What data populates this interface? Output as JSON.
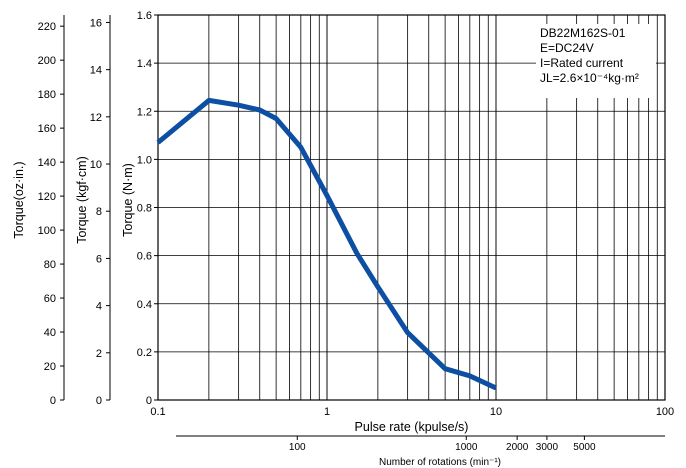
{
  "chart_data": {
    "type": "line",
    "x_scale": "log",
    "xlim": [
      0.1,
      100
    ],
    "ylim": [
      0,
      1.6
    ],
    "xlabel": "Pulse rate  (kpulse/s)",
    "ylabel": "Torque (N·m)",
    "x_ticks": [
      "0.1",
      "1",
      "10",
      "100"
    ],
    "y_ticks": [
      "0",
      "0.2",
      "0.4",
      "0.6",
      "0.8",
      "1.0",
      "1.2",
      "1.4",
      "1.6"
    ],
    "grid": true,
    "series": [
      {
        "color": "#0d4fa3",
        "points": [
          [
            0.1,
            1.07
          ],
          [
            0.2,
            1.245
          ],
          [
            0.3,
            1.225
          ],
          [
            0.4,
            1.205
          ],
          [
            0.5,
            1.17
          ],
          [
            0.7,
            1.05
          ],
          [
            1.0,
            0.85
          ],
          [
            1.5,
            0.61
          ],
          [
            2.0,
            0.47
          ],
          [
            3.0,
            0.28
          ],
          [
            5.0,
            0.13
          ],
          [
            7.0,
            0.1
          ],
          [
            10.0,
            0.05
          ]
        ]
      }
    ],
    "annotation": [
      "DB22M162S-01",
      "E=DC24V",
      "I=Rated current",
      "JL=2.6×10⁻⁴kg·m²"
    ],
    "secondary_axes": [
      {
        "label": "Torque (kgf·cm)",
        "ticks": [
          "0",
          "2",
          "4",
          "6",
          "8",
          "10",
          "12",
          "14",
          "16"
        ],
        "values": [
          0,
          2,
          4,
          6,
          8,
          10,
          12,
          14,
          16
        ],
        "scale_to_primary": 0.0980665
      },
      {
        "label": "Torque(oz·in.)",
        "ticks": [
          "0",
          "20",
          "40",
          "60",
          "80",
          "100",
          "120",
          "140",
          "160",
          "180",
          "200",
          "220"
        ],
        "values": [
          0,
          20,
          40,
          60,
          80,
          100,
          120,
          140,
          160,
          180,
          200,
          220
        ],
        "scale_to_primary": 0.00706155
      }
    ],
    "rotation_axis": {
      "label": "Number of rotations  (min⁻¹)",
      "ticks": [
        "100",
        "1000",
        "2000",
        "3000",
        "5000"
      ],
      "values": [
        100,
        1000,
        2000,
        3000,
        5000
      ],
      "x_per_rotation": 0.00667
    }
  }
}
